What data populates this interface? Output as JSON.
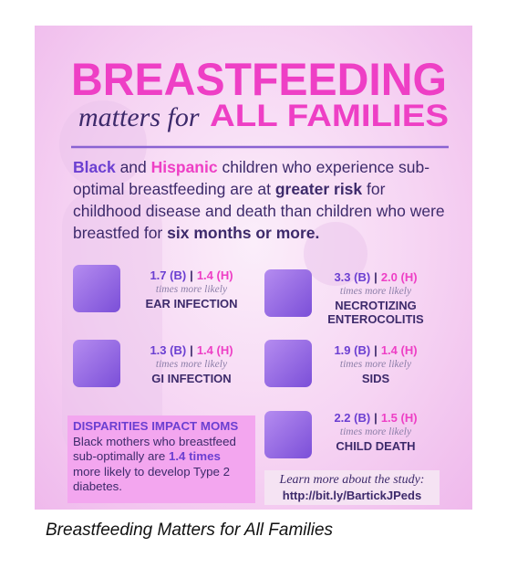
{
  "header": {
    "title": "BREASTFEEDING",
    "subtitle_italic": "matters for",
    "subtitle_bold": "ALL FAMILIES"
  },
  "intro": [
    "Black",
    " and ",
    "Hispanic",
    " children who experience sub-optimal breastfeeding are at ",
    "greater risk",
    " for childhood disease and death than children who were breastfed for ",
    "six months or more."
  ],
  "separator": "|",
  "stats": [
    {
      "black": "1.7 (B)",
      "hispanic": "1.4 (H)",
      "note": "times more likely",
      "label": "EAR INFECTION"
    },
    {
      "black": "3.3 (B)",
      "hispanic": "2.0 (H)",
      "note": "times more likely",
      "label": "NECROTIZING ENTEROCOLITIS"
    },
    {
      "black": "1.3 (B)",
      "hispanic": "1.4 (H)",
      "note": "times more likely",
      "label": "GI INFECTION"
    },
    {
      "black": "1.9 (B)",
      "hispanic": "1.4 (H)",
      "note": "times more likely",
      "label": "SIDS"
    },
    {
      "black": "2.2 (B)",
      "hispanic": "1.5 (H)",
      "note": "times more likely",
      "label": "CHILD DEATH"
    }
  ],
  "disparities": {
    "title": "DISPARITIES IMPACT MOMS",
    "text": [
      "Black mothers who breastfeed sub-optimally are ",
      "1.4 times",
      " more likely to develop Type 2 diabetes."
    ]
  },
  "learn_more": {
    "text": "Learn more about the study:",
    "url": "http://bit.ly/BartickJPeds"
  },
  "caption": "Breastfeeding Matters for All Families"
}
